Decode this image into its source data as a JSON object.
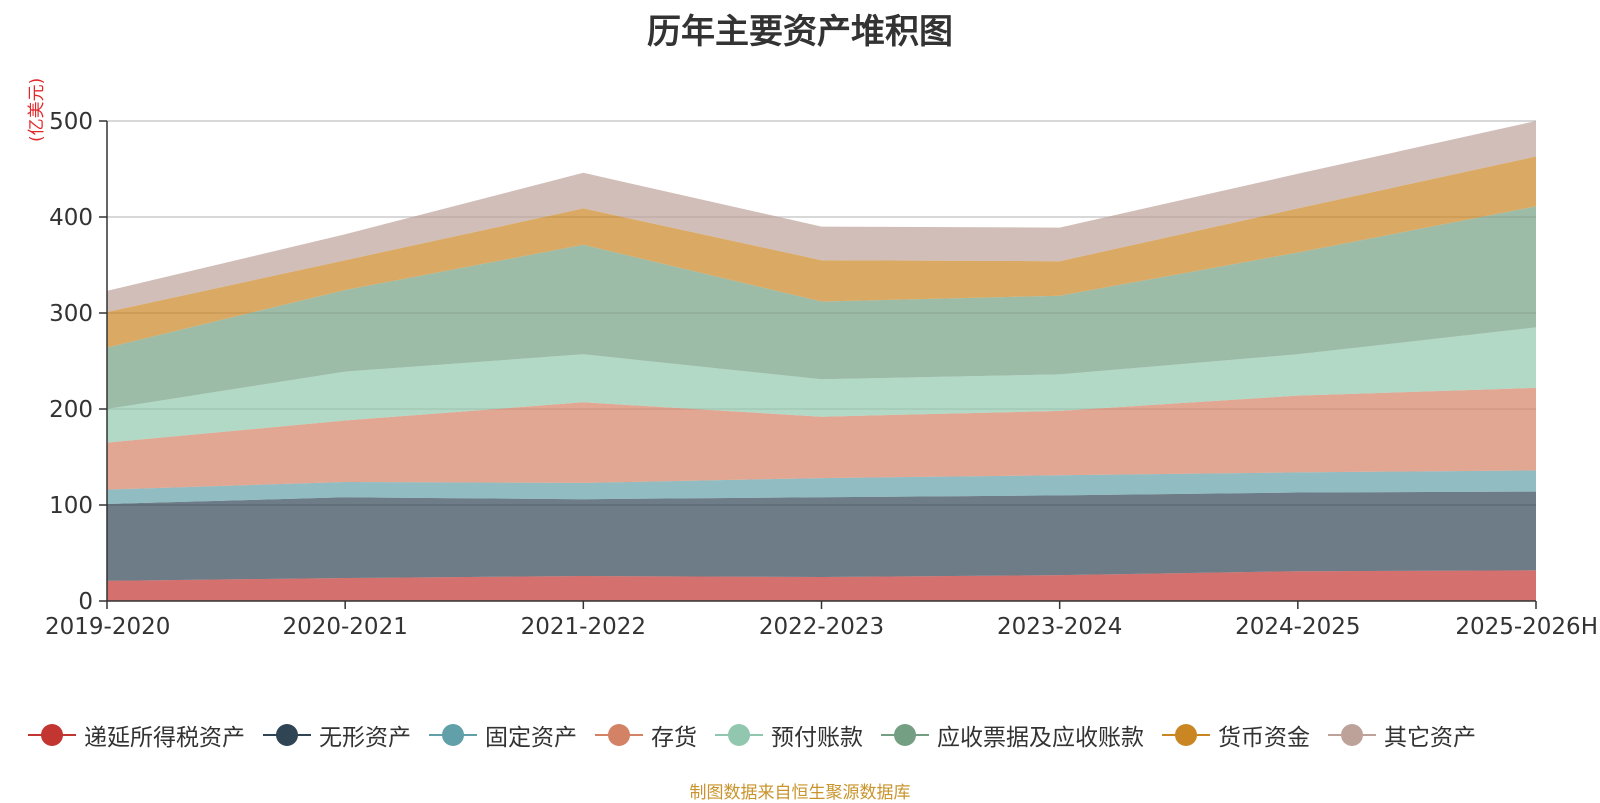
{
  "title": "历年主要资产堆积图",
  "unit_label": "(亿美元)",
  "source": "制图数据来自恒生聚源数据库",
  "chart_data": {
    "type": "area",
    "stacked": true,
    "title": "历年主要资产堆积图",
    "ylabel": "(亿美元)",
    "xlabel": "",
    "categories": [
      "2019-2020",
      "2020-2021",
      "2021-2022",
      "2022-2023",
      "2023-2024",
      "2024-2025",
      "2025-2026H"
    ],
    "ylim": [
      0,
      500
    ],
    "yticks": [
      0,
      100,
      200,
      300,
      400,
      500
    ],
    "grid": true,
    "legend_position": "bottom",
    "series": [
      {
        "name": "递延所得税资产",
        "color": "#c23531",
        "values": [
          21,
          24,
          26,
          25,
          27,
          31,
          32
        ]
      },
      {
        "name": "无形资产",
        "color": "#2f4554",
        "values": [
          80,
          84,
          80,
          83,
          83,
          82,
          82
        ]
      },
      {
        "name": "固定资产",
        "color": "#61a0a8",
        "values": [
          15,
          16,
          17,
          20,
          21,
          21,
          22
        ]
      },
      {
        "name": "存货",
        "color": "#d48265",
        "values": [
          49,
          64,
          84,
          64,
          67,
          80,
          86
        ]
      },
      {
        "name": "预付账款",
        "color": "#91c7ae",
        "values": [
          35,
          51,
          50,
          39,
          38,
          43,
          63
        ]
      },
      {
        "name": "应收票据及应收账款",
        "color": "#749f83",
        "values": [
          64,
          85,
          114,
          81,
          82,
          106,
          126
        ]
      },
      {
        "name": "货币资金",
        "color": "#ca8622",
        "values": [
          37,
          31,
          38,
          43,
          36,
          46,
          52
        ]
      },
      {
        "name": "其它资产",
        "color": "#bda29a",
        "values": [
          22,
          27,
          37,
          35,
          35,
          36,
          37
        ]
      }
    ]
  }
}
